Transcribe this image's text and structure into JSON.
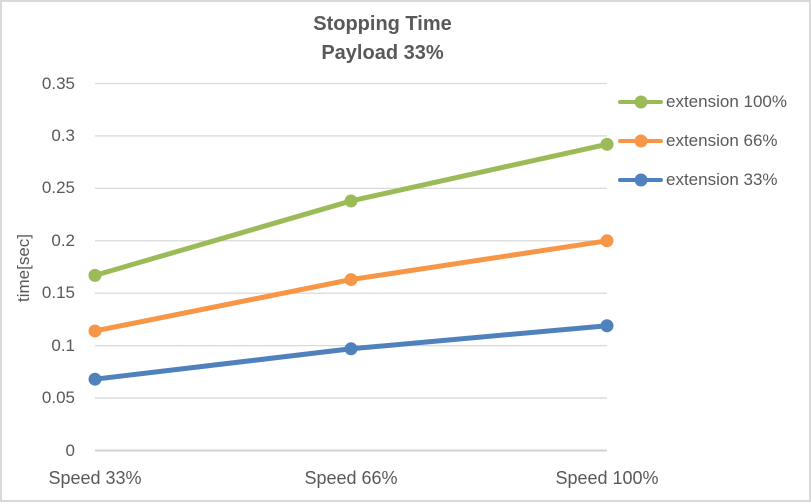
{
  "chart": {
    "title_line1": "Stopping Time",
    "title_line2": "Payload 33%",
    "y_axis_title": "time[sec]"
  },
  "chart_data": {
    "type": "line",
    "title": "Stopping Time",
    "subtitle": "Payload 33%",
    "xlabel": "",
    "ylabel": "time[sec]",
    "categories": [
      "Speed 33%",
      "Speed 66%",
      "Speed 100%"
    ],
    "series": [
      {
        "name": "extension 100%",
        "color": "#9BBB59",
        "values": [
          0.167,
          0.238,
          0.292
        ]
      },
      {
        "name": "extension 66%",
        "color": "#F79646",
        "values": [
          0.114,
          0.163,
          0.2
        ]
      },
      {
        "name": "extension 33%",
        "color": "#4F81BD",
        "values": [
          0.068,
          0.097,
          0.119
        ]
      }
    ],
    "ylim": [
      0,
      0.35
    ],
    "ytick_step": 0.05,
    "ytick_labels": [
      "0",
      "0.05",
      "0.1",
      "0.15",
      "0.2",
      "0.25",
      "0.3",
      "0.35"
    ],
    "grid": true,
    "legend_position": "right",
    "colors": {
      "gridline": "#D9D9D9",
      "axis_line": "#D3D3D3",
      "text": "#595959",
      "frame_border": "#D9D9D9"
    }
  }
}
